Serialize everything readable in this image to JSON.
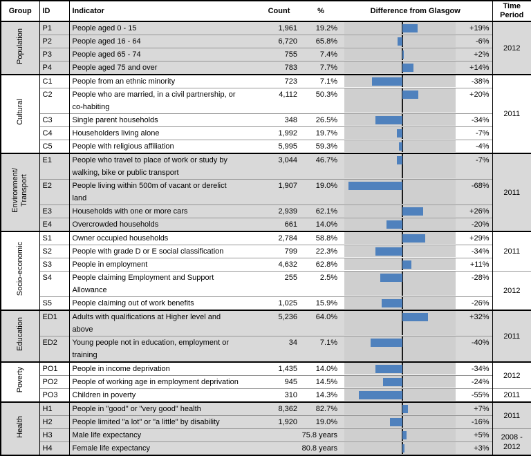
{
  "header": {
    "group": "Group",
    "id": "ID",
    "indicator": "Indicator",
    "count": "Count",
    "pct": "%",
    "diff": "Difference from Glasgow",
    "time": "Time Period"
  },
  "colors": {
    "bar": "#4f81bd",
    "section_shade": "#d9d9d9",
    "chart_band": "#cfcfcf",
    "axis": "#1a1a1a",
    "gridline": "#949494",
    "border": "#000000"
  },
  "sections": [
    {
      "group": "Population",
      "shaded": true,
      "time_periods": [
        {
          "label": "2012",
          "rows": 4
        }
      ],
      "rows": [
        {
          "id": "P1",
          "indicator": "People aged 0 - 15",
          "count": "1,961",
          "pct": "19.2%",
          "diff": 19,
          "diff_label": "+19%",
          "lines": 1
        },
        {
          "id": "P2",
          "indicator": "People aged 16 - 64",
          "count": "6,720",
          "pct": "65.8%",
          "diff": -6,
          "diff_label": "-6%",
          "lines": 1
        },
        {
          "id": "P3",
          "indicator": "People aged 65 - 74",
          "count": "755",
          "pct": "7.4%",
          "diff": 2,
          "diff_label": "+2%",
          "lines": 1
        },
        {
          "id": "P4",
          "indicator": "People aged 75 and over",
          "count": "783",
          "pct": "7.7%",
          "diff": 14,
          "diff_label": "+14%",
          "lines": 1
        }
      ]
    },
    {
      "group": "Cultural",
      "shaded": false,
      "time_periods": [
        {
          "label": "2011",
          "rows": 5
        }
      ],
      "rows": [
        {
          "id": "C1",
          "indicator": "People from an ethnic minority",
          "count": "723",
          "pct": "7.1%",
          "diff": -38,
          "diff_label": "-38%",
          "lines": 1
        },
        {
          "id": "C2",
          "indicator": "People who are married, in a civil partnership, or\nco-habiting",
          "count": "4,112",
          "pct": "50.3%",
          "diff": 20,
          "diff_label": "+20%",
          "lines": 2
        },
        {
          "id": "C3",
          "indicator": "Single parent households",
          "count": "348",
          "pct": "26.5%",
          "diff": -34,
          "diff_label": "-34%",
          "lines": 1
        },
        {
          "id": "C4",
          "indicator": "Householders living alone",
          "count": "1,992",
          "pct": "19.7%",
          "diff": -7,
          "diff_label": "-7%",
          "lines": 1
        },
        {
          "id": "C5",
          "indicator": "People with religious affiliation",
          "count": "5,995",
          "pct": "59.3%",
          "diff": -4,
          "diff_label": "-4%",
          "lines": 1
        }
      ]
    },
    {
      "group": "Environment/\nTransport",
      "shaded": true,
      "time_periods": [
        {
          "label": "2011",
          "rows": 4
        }
      ],
      "rows": [
        {
          "id": "E1",
          "indicator": "People who travel to place of work or study by\nwalking, bike or public transport",
          "count": "3,044",
          "pct": "46.7%",
          "diff": -7,
          "diff_label": "-7%",
          "lines": 2
        },
        {
          "id": "E2",
          "indicator": "People living within 500m of vacant or derelict\nland",
          "count": "1,907",
          "pct": "19.0%",
          "diff": -68,
          "diff_label": "-68%",
          "lines": 2
        },
        {
          "id": "E3",
          "indicator": "Households with one or more cars",
          "count": "2,939",
          "pct": "62.1%",
          "diff": 26,
          "diff_label": "+26%",
          "lines": 1
        },
        {
          "id": "E4",
          "indicator": "Overcrowded households",
          "count": "661",
          "pct": "14.0%",
          "diff": -20,
          "diff_label": "-20%",
          "lines": 1
        }
      ]
    },
    {
      "group": "Socio-economic",
      "shaded": false,
      "time_periods": [
        {
          "label": "2011",
          "rows": 3
        },
        {
          "label": "2012",
          "rows": 2
        }
      ],
      "rows": [
        {
          "id": "S1",
          "indicator": "Owner occupied households",
          "count": "2,784",
          "pct": "58.8%",
          "diff": 29,
          "diff_label": "+29%",
          "lines": 1
        },
        {
          "id": "S2",
          "indicator": "People with grade D or E social classification",
          "count": "799",
          "pct": "22.3%",
          "diff": -34,
          "diff_label": "-34%",
          "lines": 1
        },
        {
          "id": "S3",
          "indicator": "People in employment",
          "count": "4,632",
          "pct": "62.8%",
          "diff": 11,
          "diff_label": "+11%",
          "lines": 1
        },
        {
          "id": "S4",
          "indicator": "People claiming Employment and Support\nAllowance",
          "count": "255",
          "pct": "2.5%",
          "diff": -28,
          "diff_label": "-28%",
          "lines": 2
        },
        {
          "id": "S5",
          "indicator": "People claiming out of work benefits",
          "count": "1,025",
          "pct": "15.9%",
          "diff": -26,
          "diff_label": "-26%",
          "lines": 1
        }
      ]
    },
    {
      "group": "Education",
      "shaded": true,
      "time_periods": [
        {
          "label": "2011",
          "rows": 2
        }
      ],
      "rows": [
        {
          "id": "ED1",
          "indicator": "Adults with qualifications at Higher level and\nabove",
          "count": "5,236",
          "pct": "64.0%",
          "diff": 32,
          "diff_label": "+32%",
          "lines": 2
        },
        {
          "id": "ED2",
          "indicator": "Young people not in education, employment or\ntraining",
          "count": "34",
          "pct": "7.1%",
          "diff": -40,
          "diff_label": "-40%",
          "lines": 2
        }
      ]
    },
    {
      "group": "Poverty",
      "shaded": false,
      "time_periods": [
        {
          "label": "2012",
          "rows": 2
        },
        {
          "label": "2011",
          "rows": 1
        }
      ],
      "rows": [
        {
          "id": "PO1",
          "indicator": "People in income deprivation",
          "count": "1,435",
          "pct": "14.0%",
          "diff": -34,
          "diff_label": "-34%",
          "lines": 1
        },
        {
          "id": "PO2",
          "indicator": "People of working age in employment deprivation",
          "count": "945",
          "pct": "14.5%",
          "diff": -24,
          "diff_label": "-24%",
          "lines": 1
        },
        {
          "id": "PO3",
          "indicator": "Children in poverty",
          "count": "310",
          "pct": "14.3%",
          "diff": -55,
          "diff_label": "-55%",
          "lines": 1
        }
      ]
    },
    {
      "group": "Health",
      "shaded": true,
      "time_periods": [
        {
          "label": "2011",
          "rows": 2
        },
        {
          "label": "2008 - 2012",
          "rows": 2
        }
      ],
      "rows": [
        {
          "id": "H1",
          "indicator": "People in \"good\" or \"very good\" health",
          "count": "8,362",
          "pct": "82.7%",
          "diff": 7,
          "diff_label": "+7%",
          "lines": 1
        },
        {
          "id": "H2",
          "indicator": "People limited \"a lot\" or \"a little\" by disability",
          "count": "1,920",
          "pct": "19.0%",
          "diff": -16,
          "diff_label": "-16%",
          "lines": 1
        },
        {
          "id": "H3",
          "indicator": "Male life expectancy",
          "count": "75.8 years",
          "pct": null,
          "diff": 5,
          "diff_label": "+5%",
          "lines": 1
        },
        {
          "id": "H4",
          "indicator": "Female life expectancy",
          "count": "80.8 years",
          "pct": null,
          "diff": 3,
          "diff_label": "+3%",
          "lines": 1
        }
      ]
    }
  ],
  "chart_data": {
    "type": "bar",
    "title": "Difference from Glasgow",
    "xlabel": "",
    "ylabel": "",
    "orientation": "horizontal",
    "xlim": [
      -73,
      67
    ],
    "grid": false,
    "categories": [
      "P1",
      "P2",
      "P3",
      "P4",
      "C1",
      "C2",
      "C3",
      "C4",
      "C5",
      "E1",
      "E2",
      "E3",
      "E4",
      "S1",
      "S2",
      "S3",
      "S4",
      "S5",
      "ED1",
      "ED2",
      "PO1",
      "PO2",
      "PO3",
      "H1",
      "H2",
      "H3",
      "H4"
    ],
    "values": [
      19,
      -6,
      2,
      14,
      -38,
      20,
      -34,
      -7,
      -4,
      -7,
      -68,
      26,
      -20,
      29,
      -34,
      11,
      -28,
      -26,
      32,
      -40,
      -34,
      -24,
      -55,
      7,
      -16,
      5,
      3
    ],
    "data_labels": [
      "+19%",
      "-6%",
      "+2%",
      "+14%",
      "-38%",
      "+20%",
      "-34%",
      "-7%",
      "-4%",
      "-7%",
      "-68%",
      "+26%",
      "-20%",
      "+29%",
      "-34%",
      "+11%",
      "-28%",
      "-26%",
      "+32%",
      "-40%",
      "-34%",
      "-24%",
      "-55%",
      "+7%",
      "-16%",
      "+5%",
      "+3%"
    ]
  }
}
